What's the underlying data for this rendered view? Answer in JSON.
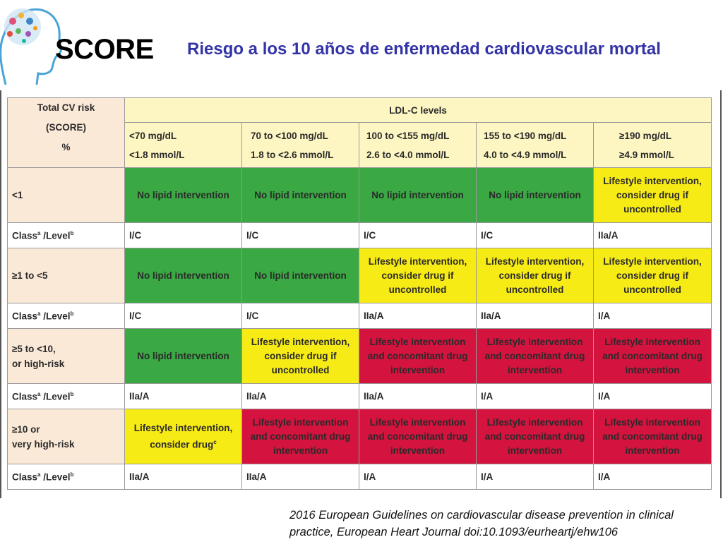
{
  "title": "SCORE",
  "subtitle": "Riesgo a los 10 años de enfermedad cardiovascular mortal",
  "table": {
    "corner": [
      "Total CV risk",
      "(SCORE)",
      "%"
    ],
    "ldl_header": "LDL-C levels",
    "columns": [
      {
        "mgdl": "<70 mg/dL",
        "mmol": "<1.8 mmol/L"
      },
      {
        "mgdl": "70 to <100 mg/dL",
        "mmol": "1.8 to <2.6 mmol/L"
      },
      {
        "mgdl": "100 to <155 mg/dL",
        "mmol": "2.6 to <4.0 mmol/L"
      },
      {
        "mgdl": "155 to <190 mg/dL",
        "mmol": "4.0 to <4.9 mmol/L"
      },
      {
        "mgdl": "≥190 mg/dL",
        "mmol": "≥4.9 mmol/L"
      }
    ],
    "class_label": {
      "a": "Class",
      "sup_a": "a",
      "b": " /Level",
      "sup_b": "b"
    },
    "rows": [
      {
        "risk": [
          "<1"
        ],
        "cells": [
          {
            "text": "No lipid intervention",
            "color": "green"
          },
          {
            "text": "No lipid intervention",
            "color": "green"
          },
          {
            "text": "No lipid intervention",
            "color": "green"
          },
          {
            "text": "No lipid intervention",
            "color": "green"
          },
          {
            "text": "Lifestyle intervention, consider drug if uncontrolled",
            "color": "yellow"
          }
        ],
        "classes": [
          "I/C",
          "I/C",
          "I/C",
          "I/C",
          "IIa/A"
        ]
      },
      {
        "risk": [
          "≥1 to <5"
        ],
        "cells": [
          {
            "text": "No lipid intervention",
            "color": "green"
          },
          {
            "text": "No lipid intervention",
            "color": "green"
          },
          {
            "text": "Lifestyle intervention, consider drug if uncontrolled",
            "color": "yellow"
          },
          {
            "text": "Lifestyle intervention, consider drug if uncontrolled",
            "color": "yellow"
          },
          {
            "text": "Lifestyle intervention, consider drug if uncontrolled",
            "color": "yellow"
          }
        ],
        "classes": [
          "I/C",
          "I/C",
          "IIa/A",
          "IIa/A",
          "I/A"
        ]
      },
      {
        "risk": [
          "≥5 to <10,",
          "or high-risk"
        ],
        "cells": [
          {
            "text": "No lipid intervention",
            "color": "green"
          },
          {
            "text": "Lifestyle intervention, consider drug if uncontrolled",
            "color": "yellow"
          },
          {
            "text": "Lifestyle intervention and concomitant drug intervention",
            "color": "red"
          },
          {
            "text": "Lifestyle intervention and concomitant drug intervention",
            "color": "red"
          },
          {
            "text": "Lifestyle intervention and concomitant drug intervention",
            "color": "red"
          }
        ],
        "classes": [
          "IIa/A",
          "IIa/A",
          "IIa/A",
          "I/A",
          "I/A"
        ]
      },
      {
        "risk": [
          "≥10 or",
          "very high-risk"
        ],
        "cells": [
          {
            "text": "Lifestyle intervention, consider drug",
            "sup": "c",
            "color": "yellow"
          },
          {
            "text": "Lifestyle intervention and concomitant drug intervention",
            "color": "red"
          },
          {
            "text": "Lifestyle intervention and concomitant drug intervention",
            "color": "red"
          },
          {
            "text": "Lifestyle intervention and concomitant drug intervention",
            "color": "red"
          },
          {
            "text": "Lifestyle intervention and concomitant drug intervention",
            "color": "red"
          }
        ],
        "classes": [
          "IIa/A",
          "IIa/A",
          "I/A",
          "I/A",
          "I/A"
        ]
      }
    ]
  },
  "reference": "2016 European Guidelines on cardiovascular disease prevention in clinical practice, European Heart Journal doi:10.1093/eurheartj/ehw106",
  "colors": {
    "green": "#3aa843",
    "yellow": "#f7eb15",
    "red": "#d4133f",
    "ldl_header": "#fdf6c3",
    "risk_header": "#fbe9d7",
    "subtitle": "#3333a8"
  }
}
